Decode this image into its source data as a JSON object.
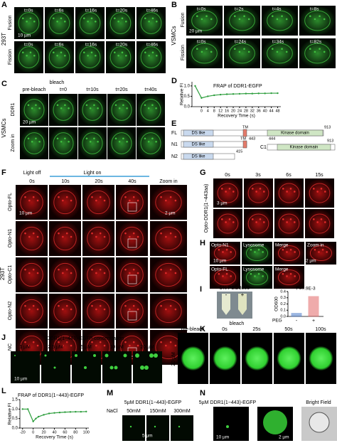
{
  "A": {
    "label": "A",
    "cell": "293T",
    "rows": [
      "Fusion",
      "Fission"
    ],
    "times": [
      "t=0s",
      "t=6s",
      "t=16s",
      "t=20s",
      "t=46s"
    ],
    "scale": "10 µm"
  },
  "B": {
    "label": "B",
    "cell": "VSMCs",
    "rows": [
      "Fusion",
      "Fission"
    ],
    "times_fusion": [
      "t=0s",
      "t=2s",
      "t=4s",
      "t=8s"
    ],
    "times_fission": [
      "t=0s",
      "t=24s",
      "t=34s",
      "t=82s"
    ],
    "scale": "20 µm"
  },
  "C": {
    "label": "C",
    "cell": "VSMCs",
    "rows": [
      "DDR1",
      "Zoom in"
    ],
    "bleach": "bleach",
    "times": [
      "pre-bleach",
      "t=0",
      "t=10s",
      "t=20s",
      "t=40s"
    ],
    "scale": "20 µm"
  },
  "D": {
    "label": "D",
    "chart": {
      "type": "line",
      "title": "FRAP of DDR1-EGFP",
      "xlabel": "Recovery Time (s)",
      "ylabel": "Relative FI",
      "color": "#2e9e3e",
      "x": [
        -4,
        0,
        4,
        8,
        12,
        16,
        20,
        24,
        28,
        32,
        36,
        40,
        44,
        48
      ],
      "values": [
        1.0,
        0.42,
        0.5,
        0.55,
        0.58,
        0.6,
        0.61,
        0.62,
        0.63,
        0.63,
        0.64,
        0.64,
        0.65,
        0.65
      ],
      "xlim": [
        -6,
        50
      ],
      "ylim": [
        0,
        1.2
      ],
      "xticks": [
        0,
        4,
        8,
        12,
        16,
        20,
        24,
        28,
        32,
        36,
        40,
        44,
        48
      ],
      "yticks": [
        {
          "value": 0,
          "label": "0.0"
        },
        {
          "value": 0.5,
          "label": "0.5"
        },
        {
          "value": 1,
          "label": "1.0"
        }
      ]
    }
  },
  "E": {
    "label": "E",
    "rows": [
      {
        "name": "FL",
        "domains": [
          "DS like",
          "TM",
          "Kinase domain"
        ],
        "end": "913"
      },
      {
        "name": "N1",
        "domains": [
          "DS like",
          "TM"
        ],
        "end": "443"
      },
      {
        "name": "C1",
        "start": "444",
        "domains": [
          "Kinase domain"
        ],
        "end": "913"
      },
      {
        "name": "N2",
        "domains": [
          "DS like"
        ],
        "end": "415"
      }
    ]
  },
  "F": {
    "label": "F",
    "cell": "293T",
    "light_off": "Light off",
    "light_on": "Light on",
    "times": [
      "0s",
      "10s",
      "20s",
      "40s"
    ],
    "zoom": "Zoom in",
    "rows": [
      "Opto-FL",
      "Opto-N1",
      "Opto-C1",
      "Opto-N2",
      "NC"
    ],
    "scale": "10 µm",
    "zoom_scale": "2 µm"
  },
  "G": {
    "label": "G",
    "row": "Opto-DDR1(1−443aa)",
    "times": [
      "0s",
      "3s",
      "6s",
      "15s"
    ],
    "scale": "3 µm"
  },
  "H": {
    "label": "H",
    "rows": [
      [
        "Opto-N1",
        "Lysosome",
        "Merge",
        "Zoom in"
      ],
      [
        "Opto-FL",
        "Lysosome",
        "Merge"
      ]
    ],
    "scale": "10 µm",
    "zoom_scale": "2 µm"
  },
  "I": {
    "label": "I",
    "peg": "5% PEG8000",
    "tubes": [
      "-",
      "+"
    ],
    "chart": {
      "type": "bar",
      "ylabel": "OD600",
      "xlabel": "PEG",
      "categories": [
        "-",
        "+"
      ],
      "values": [
        0.05,
        0.32
      ],
      "colors": [
        "#3a6fc4",
        "#e05a5a"
      ],
      "annotation": "P=7.9E-3",
      "ylim": [
        0,
        0.4
      ],
      "yticks": [
        {
          "value": 0,
          "label": "0.0"
        },
        {
          "value": 0.1,
          "label": "0.1"
        },
        {
          "value": 0.2,
          "label": "0.2"
        },
        {
          "value": 0.3,
          "label": "0.3"
        },
        {
          "value": 0.4,
          "label": "0.4"
        }
      ]
    }
  },
  "J": {
    "label": "J",
    "title": "DDR1(1−443)-EGFP concentration",
    "concs": [
      "1 µM",
      "2.5 µM",
      "5 µM",
      "10 µM",
      "20 µM"
    ],
    "scale": "10 µm"
  },
  "K": {
    "label": "K",
    "bleach": "bleach",
    "times": [
      "pre-bleach",
      "0s",
      "25s",
      "50s",
      "100s"
    ],
    "scale": "20 µM"
  },
  "L": {
    "label": "L",
    "chart": {
      "type": "line",
      "title": "FRAP of DDR1(1−443)-EGFP",
      "xlabel": "Recovery Time (s)",
      "ylabel": "Relative FI",
      "color": "#2e9e3e",
      "x": [
        -20,
        -10,
        0,
        5,
        10,
        20,
        30,
        40,
        50,
        60,
        70,
        80,
        90,
        100
      ],
      "values": [
        1.0,
        1.0,
        0.35,
        0.5,
        0.6,
        0.7,
        0.77,
        0.8,
        0.82,
        0.84,
        0.85,
        0.86,
        0.86,
        0.87
      ],
      "xlim": [
        -25,
        105
      ],
      "ylim": [
        0,
        1.5
      ],
      "xticks": [
        -20,
        0,
        20,
        40,
        60,
        80,
        100
      ],
      "yticks": [
        {
          "value": 0,
          "label": "0.0"
        },
        {
          "value": 0.5,
          "label": "0.5"
        },
        {
          "value": 1,
          "label": "1.0"
        },
        {
          "value": 1.5,
          "label": "1.5"
        }
      ]
    }
  },
  "M": {
    "label": "M",
    "title": "5µM DDR1(1−443)-EGFP",
    "salt": "NaCl",
    "concs": [
      "50mM",
      "150mM",
      "300mM"
    ],
    "scale": "5 µm"
  },
  "N": {
    "label": "N",
    "title": "5µM DDR1(1−443)-EGFP",
    "bright": "Bright Field",
    "scale": "10 µm",
    "zoom_scale": "2 µm"
  }
}
